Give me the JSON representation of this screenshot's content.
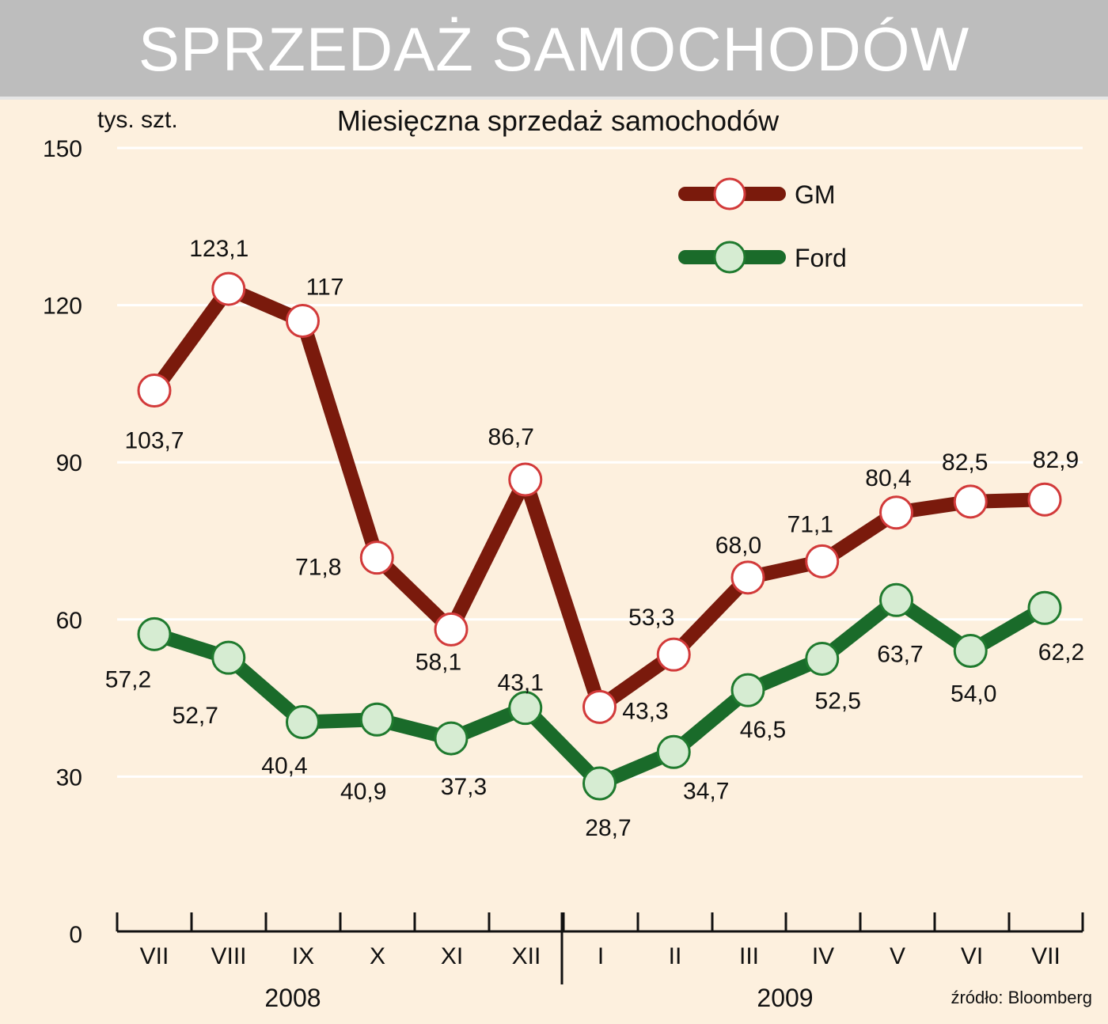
{
  "header": {
    "title": "SPRZEDAŻ SAMOCHODÓW"
  },
  "chart_data": {
    "type": "line",
    "title": "Miesięczna sprzedaż samochodów",
    "ylabel": "tys. szt.",
    "ylim": [
      0,
      150
    ],
    "yticks": [
      0,
      30,
      60,
      90,
      120,
      150
    ],
    "categories": [
      "VII",
      "VIII",
      "IX",
      "X",
      "XI",
      "XII",
      "I",
      "II",
      "III",
      "IV",
      "V",
      "VI",
      "VII"
    ],
    "year_labels": [
      "2008",
      "2009"
    ],
    "grid": true,
    "legend_position": "top-right",
    "series": [
      {
        "name": "GM",
        "color": "#7a1a0c",
        "marker_edge": "#d23a3a",
        "marker_fill": "#ffffff",
        "values": [
          103.7,
          123.1,
          117,
          71.8,
          58.1,
          86.7,
          43.3,
          53.3,
          68.0,
          71.1,
          80.4,
          82.5,
          82.9
        ],
        "labels": [
          "103,7",
          "123,1",
          "117",
          "71,8",
          "58,1",
          "86,7",
          "43,3",
          "53,3",
          "68,0",
          "71,1",
          "80,4",
          "82,5",
          "82,9"
        ]
      },
      {
        "name": "Ford",
        "color": "#1a6b2a",
        "marker_edge": "#1f7a2e",
        "marker_fill": "#d6ecd2",
        "values": [
          57.2,
          52.7,
          40.4,
          40.9,
          37.3,
          43.1,
          28.7,
          34.7,
          46.5,
          52.5,
          63.7,
          54.0,
          62.2
        ],
        "labels": [
          "57,2",
          "52,7",
          "40,4",
          "40,9",
          "37,3",
          "43,1",
          "28,7",
          "34,7",
          "46,5",
          "52,5",
          "63,7",
          "54,0",
          "62,2"
        ]
      }
    ],
    "source": "źródło: Bloomberg"
  }
}
